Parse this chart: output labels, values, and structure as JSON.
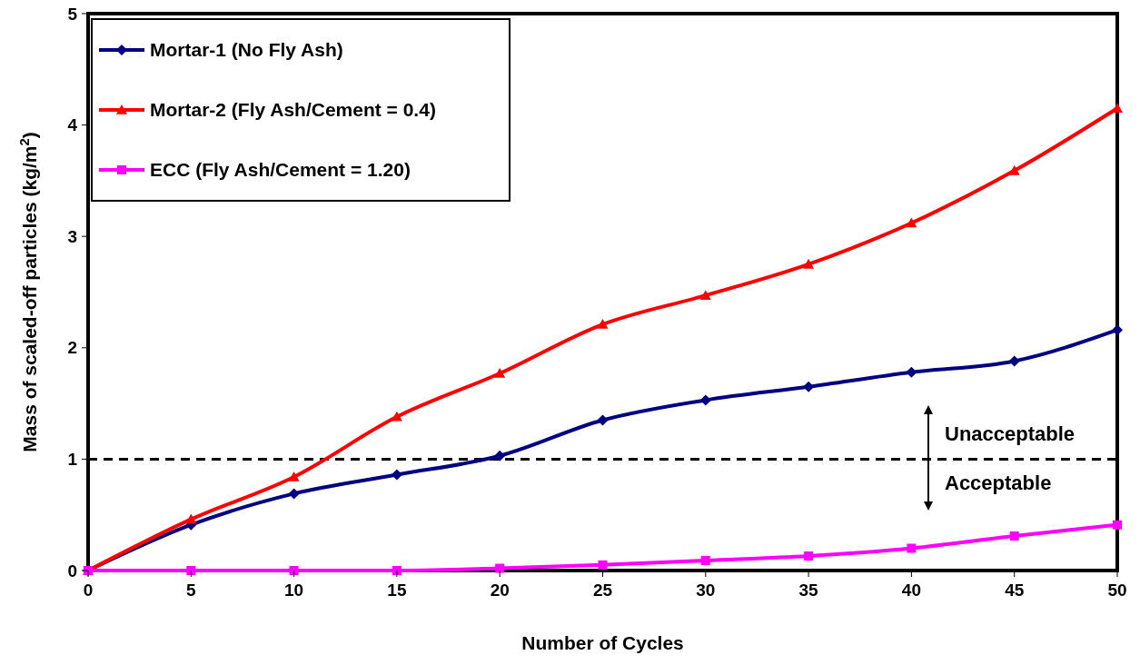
{
  "chart_data": {
    "type": "line",
    "xlabel": "Number of Cycles",
    "ylabel": "Mass of scaled-off particles (kg/m$^{2}$)",
    "x": [
      0,
      5,
      10,
      15,
      20,
      25,
      30,
      35,
      40,
      45,
      50
    ],
    "series": [
      {
        "name": "Mortar-1 (No Fly Ash)",
        "color": "#000080",
        "marker": "diamond",
        "values": [
          0,
          0.41,
          0.69,
          0.86,
          1.03,
          1.35,
          1.53,
          1.65,
          1.78,
          1.88,
          2.16
        ]
      },
      {
        "name": "Mortar-2 (Fly Ash/Cement = 0.4)",
        "color": "#ff0000",
        "marker": "triangle",
        "values": [
          0,
          0.46,
          0.84,
          1.38,
          1.77,
          2.21,
          2.47,
          2.75,
          3.12,
          3.59,
          4.15
        ]
      },
      {
        "name": "ECC (Fly Ash/Cement = 1.20)",
        "color": "#ff00ff",
        "marker": "square",
        "values": [
          0,
          0,
          0,
          0,
          0.02,
          0.05,
          0.09,
          0.13,
          0.2,
          0.31,
          0.41
        ]
      }
    ],
    "xlim": [
      0,
      50
    ],
    "xticks": [
      0,
      5,
      10,
      15,
      20,
      25,
      30,
      35,
      40,
      45,
      50
    ],
    "ylim": [
      0,
      5
    ],
    "yticks": [
      0,
      1,
      2,
      3,
      4,
      5
    ],
    "ref_lines": [
      {
        "axis": "y",
        "value": 1,
        "color": "#000000",
        "line_style": "dashed"
      }
    ],
    "annotations": [
      "Unacceptable",
      "Acceptable"
    ],
    "legend": "top left",
    "grid": false
  }
}
